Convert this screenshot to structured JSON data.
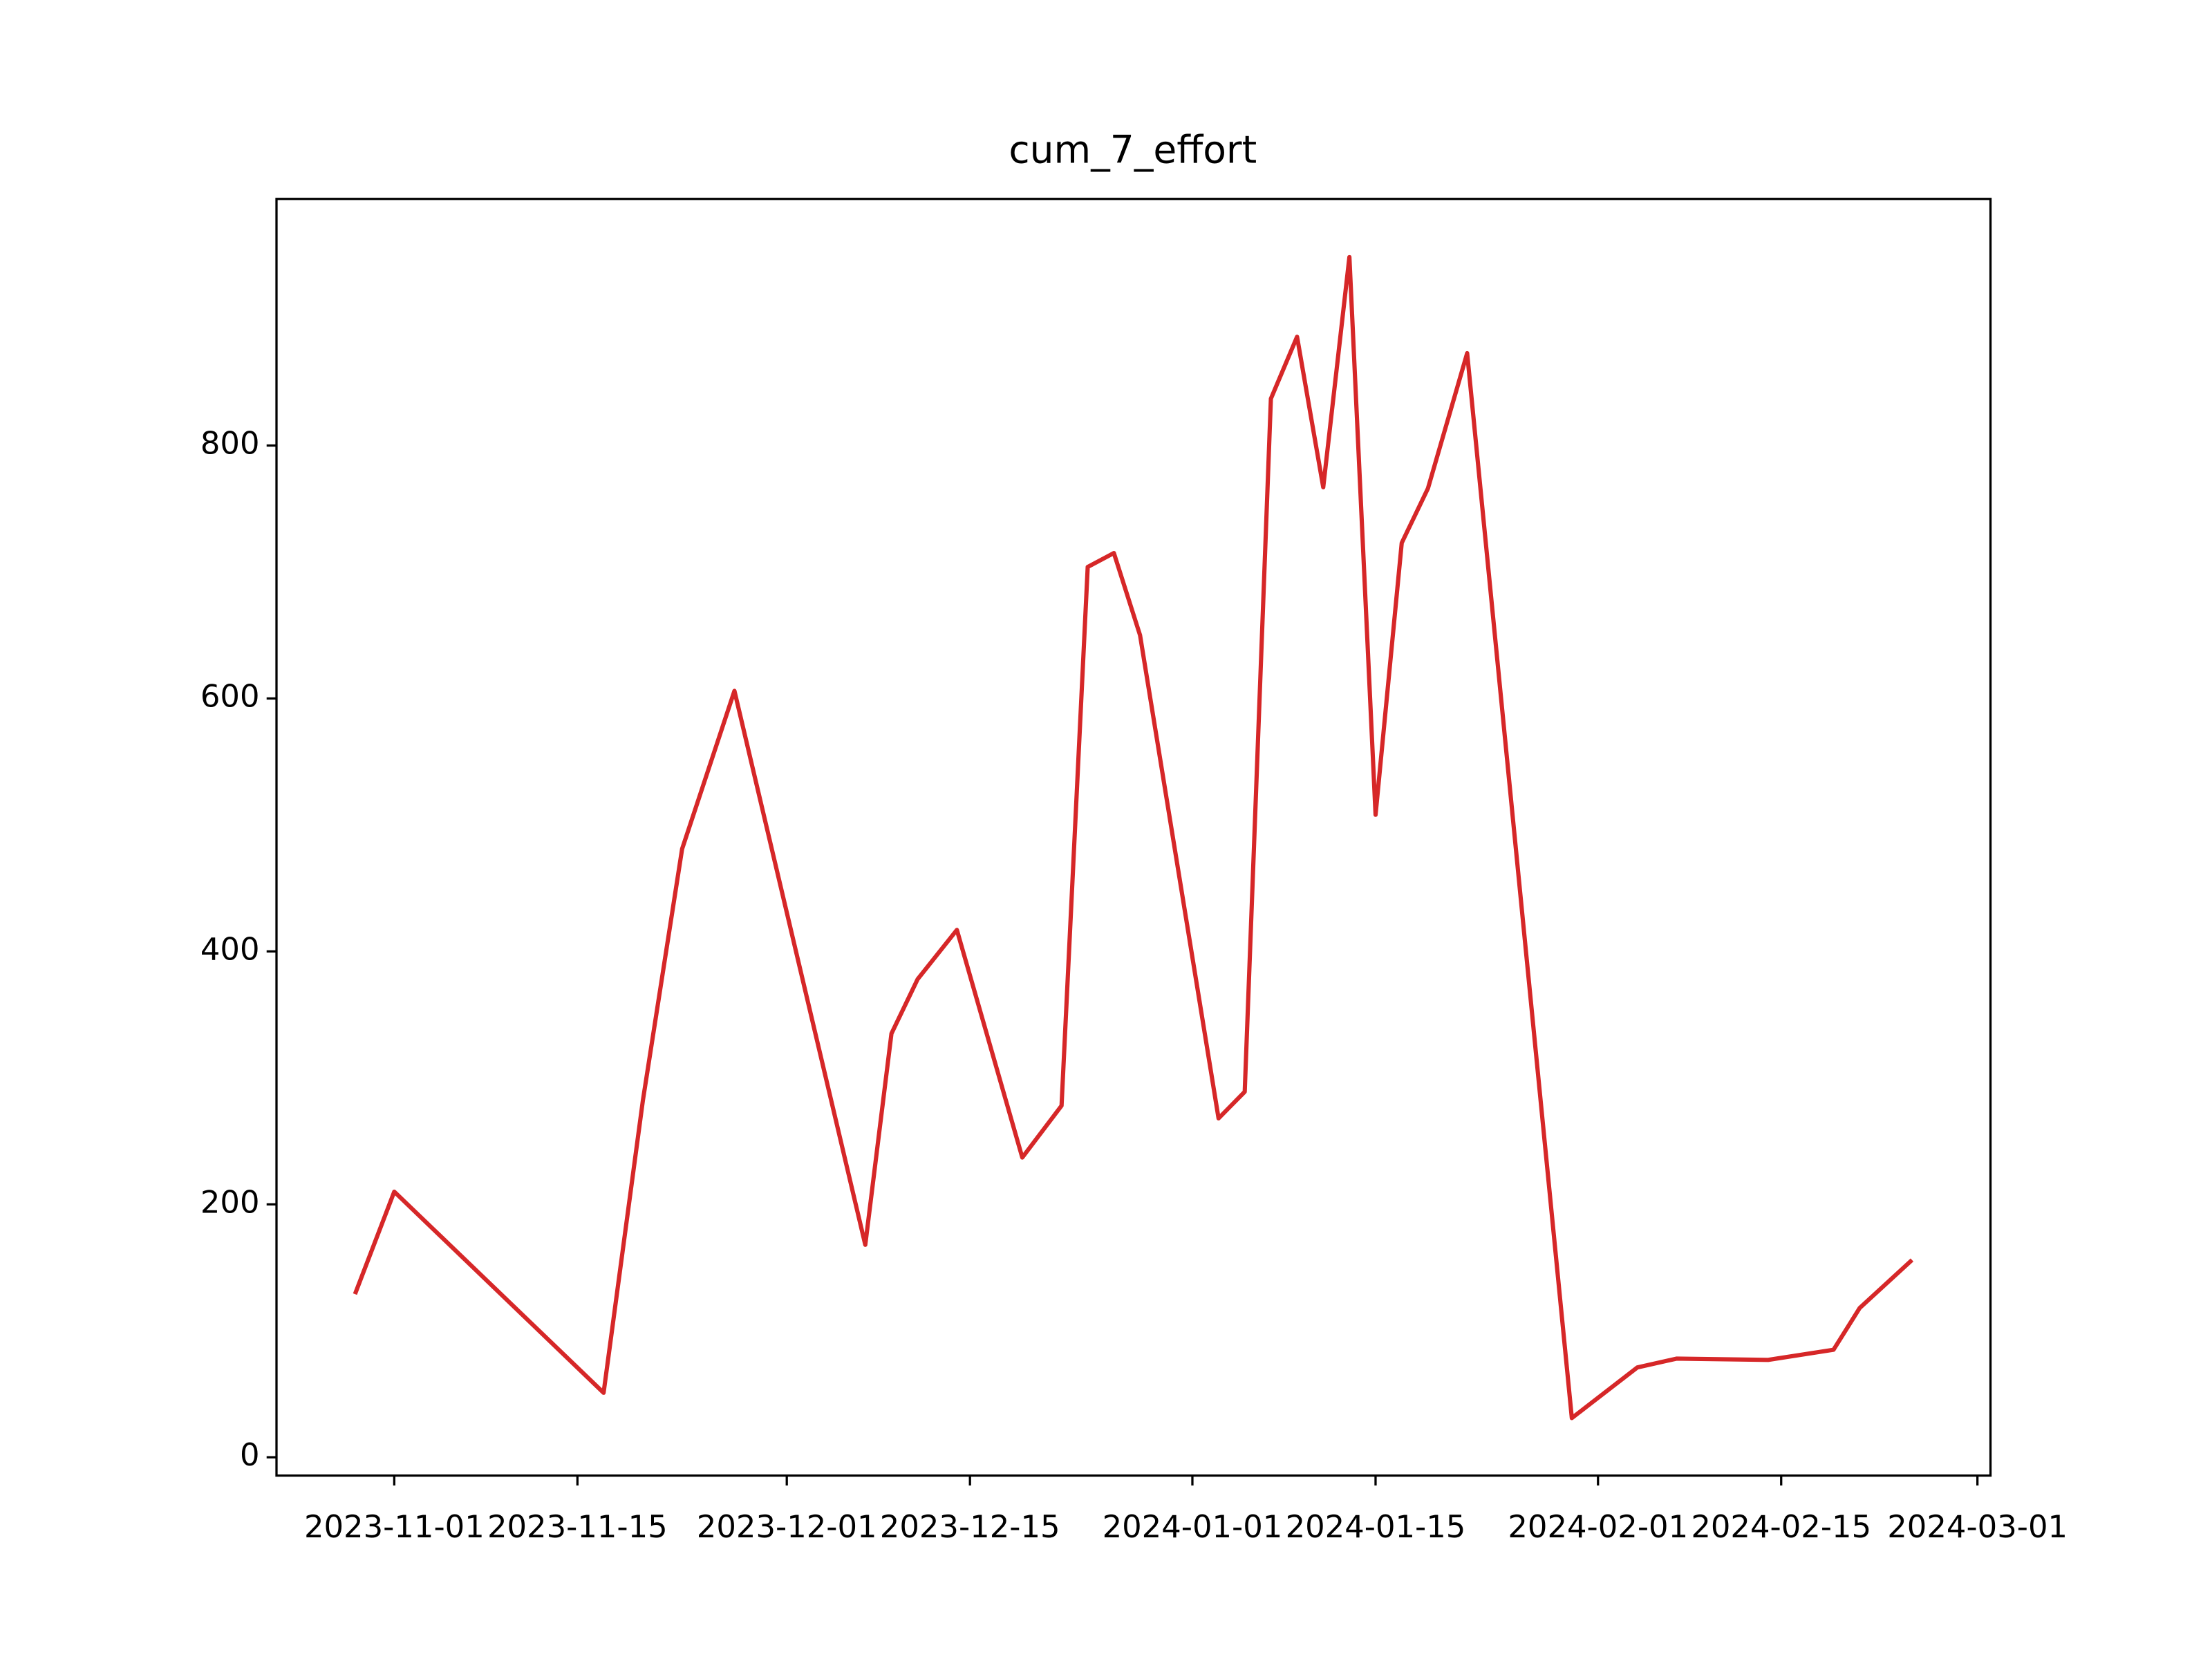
{
  "chart_data": {
    "type": "line",
    "title": "cum_7_effort",
    "x": [
      "2023-10-29",
      "2023-11-01",
      "2023-11-17",
      "2023-11-20",
      "2023-11-23",
      "2023-11-27",
      "2023-12-07",
      "2023-12-09",
      "2023-12-11",
      "2023-12-14",
      "2023-12-19",
      "2023-12-22",
      "2023-12-24",
      "2023-12-26",
      "2023-12-28",
      "2024-01-03",
      "2024-01-05",
      "2024-01-07",
      "2024-01-09",
      "2024-01-11",
      "2024-01-13",
      "2024-01-15",
      "2024-01-17",
      "2024-01-19",
      "2024-01-22",
      "2024-01-30",
      "2024-02-04",
      "2024-02-07",
      "2024-02-14",
      "2024-02-19",
      "2024-02-21",
      "2024-02-25"
    ],
    "series": [
      {
        "color": "#d62728",
        "values": [
          129,
          210,
          51,
          282,
          481,
          606,
          168,
          335,
          378,
          417,
          237,
          278,
          704,
          715,
          650,
          268,
          289,
          837,
          886,
          767,
          949,
          508,
          723,
          766,
          873,
          31,
          71,
          78,
          77,
          85,
          118,
          156
        ]
      }
    ],
    "xlim": [
      "2023-10-23",
      "2024-03-02"
    ],
    "xticks": [
      "2023-11-01",
      "2023-11-15",
      "2023-12-01",
      "2023-12-15",
      "2024-01-01",
      "2024-01-15",
      "2024-02-01",
      "2024-02-15",
      "2024-03-01"
    ],
    "ylim": [
      -14.5,
      995
    ],
    "yticks": [
      0,
      200,
      400,
      600,
      800
    ]
  }
}
